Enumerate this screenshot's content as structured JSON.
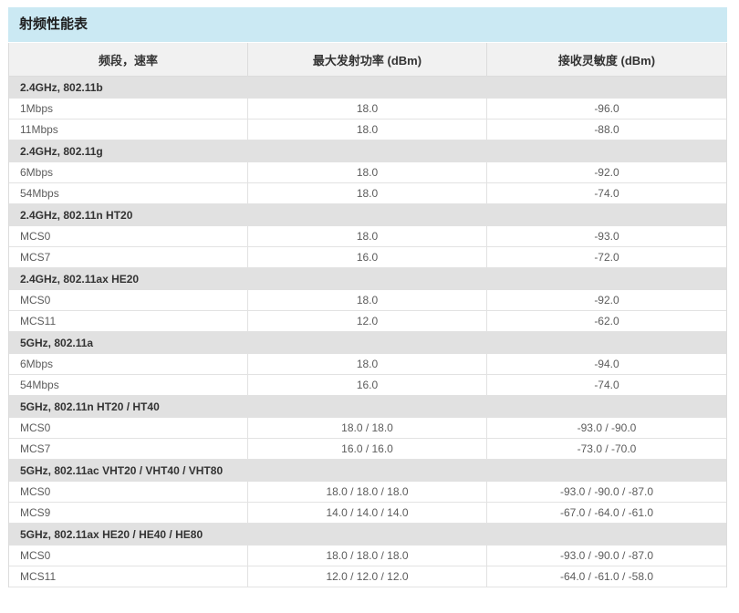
{
  "colors": {
    "title_bg": "#cbe9f3",
    "header_bg": "#f1f1f1",
    "section_bg": "#e1e1e1",
    "border": "#dcdcdc",
    "row_border": "#e2e2e2",
    "title_text": "#1d1d1d",
    "header_text": "#333333",
    "cell_text": "#5c5c5c"
  },
  "table": {
    "title": "射频性能表",
    "columns": [
      "频段，速率",
      "最大发射功率 (dBm)",
      "接收灵敏度 (dBm)"
    ],
    "sections": [
      {
        "header": "2.4GHz, 802.11b",
        "rows": [
          [
            "1Mbps",
            "18.0",
            "-96.0"
          ],
          [
            "11Mbps",
            "18.0",
            "-88.0"
          ]
        ]
      },
      {
        "header": "2.4GHz, 802.11g",
        "rows": [
          [
            "6Mbps",
            "18.0",
            "-92.0"
          ],
          [
            "54Mbps",
            "18.0",
            "-74.0"
          ]
        ]
      },
      {
        "header": "2.4GHz, 802.11n HT20",
        "rows": [
          [
            "MCS0",
            "18.0",
            "-93.0"
          ],
          [
            "MCS7",
            "16.0",
            "-72.0"
          ]
        ]
      },
      {
        "header": "2.4GHz, 802.11ax HE20",
        "rows": [
          [
            "MCS0",
            "18.0",
            "-92.0"
          ],
          [
            "MCS11",
            "12.0",
            "-62.0"
          ]
        ]
      },
      {
        "header": "5GHz, 802.11a",
        "rows": [
          [
            "6Mbps",
            "18.0",
            "-94.0"
          ],
          [
            "54Mbps",
            "16.0",
            "-74.0"
          ]
        ]
      },
      {
        "header": "5GHz, 802.11n HT20 / HT40",
        "rows": [
          [
            "MCS0",
            "18.0 / 18.0",
            "-93.0 / -90.0"
          ],
          [
            "MCS7",
            "16.0 / 16.0",
            "-73.0 / -70.0"
          ]
        ]
      },
      {
        "header": "5GHz, 802.11ac VHT20 / VHT40 / VHT80",
        "rows": [
          [
            "MCS0",
            "18.0 / 18.0 / 18.0",
            "-93.0 / -90.0 / -87.0"
          ],
          [
            "MCS9",
            "14.0 / 14.0 / 14.0",
            "-67.0 / -64.0 / -61.0"
          ]
        ]
      },
      {
        "header": "5GHz, 802.11ax HE20 / HE40 / HE80",
        "rows": [
          [
            "MCS0",
            "18.0 / 18.0 / 18.0",
            "-93.0 / -90.0 / -87.0"
          ],
          [
            "MCS11",
            "12.0 / 12.0 / 12.0",
            "-64.0 / -61.0 / -58.0"
          ]
        ]
      }
    ]
  }
}
